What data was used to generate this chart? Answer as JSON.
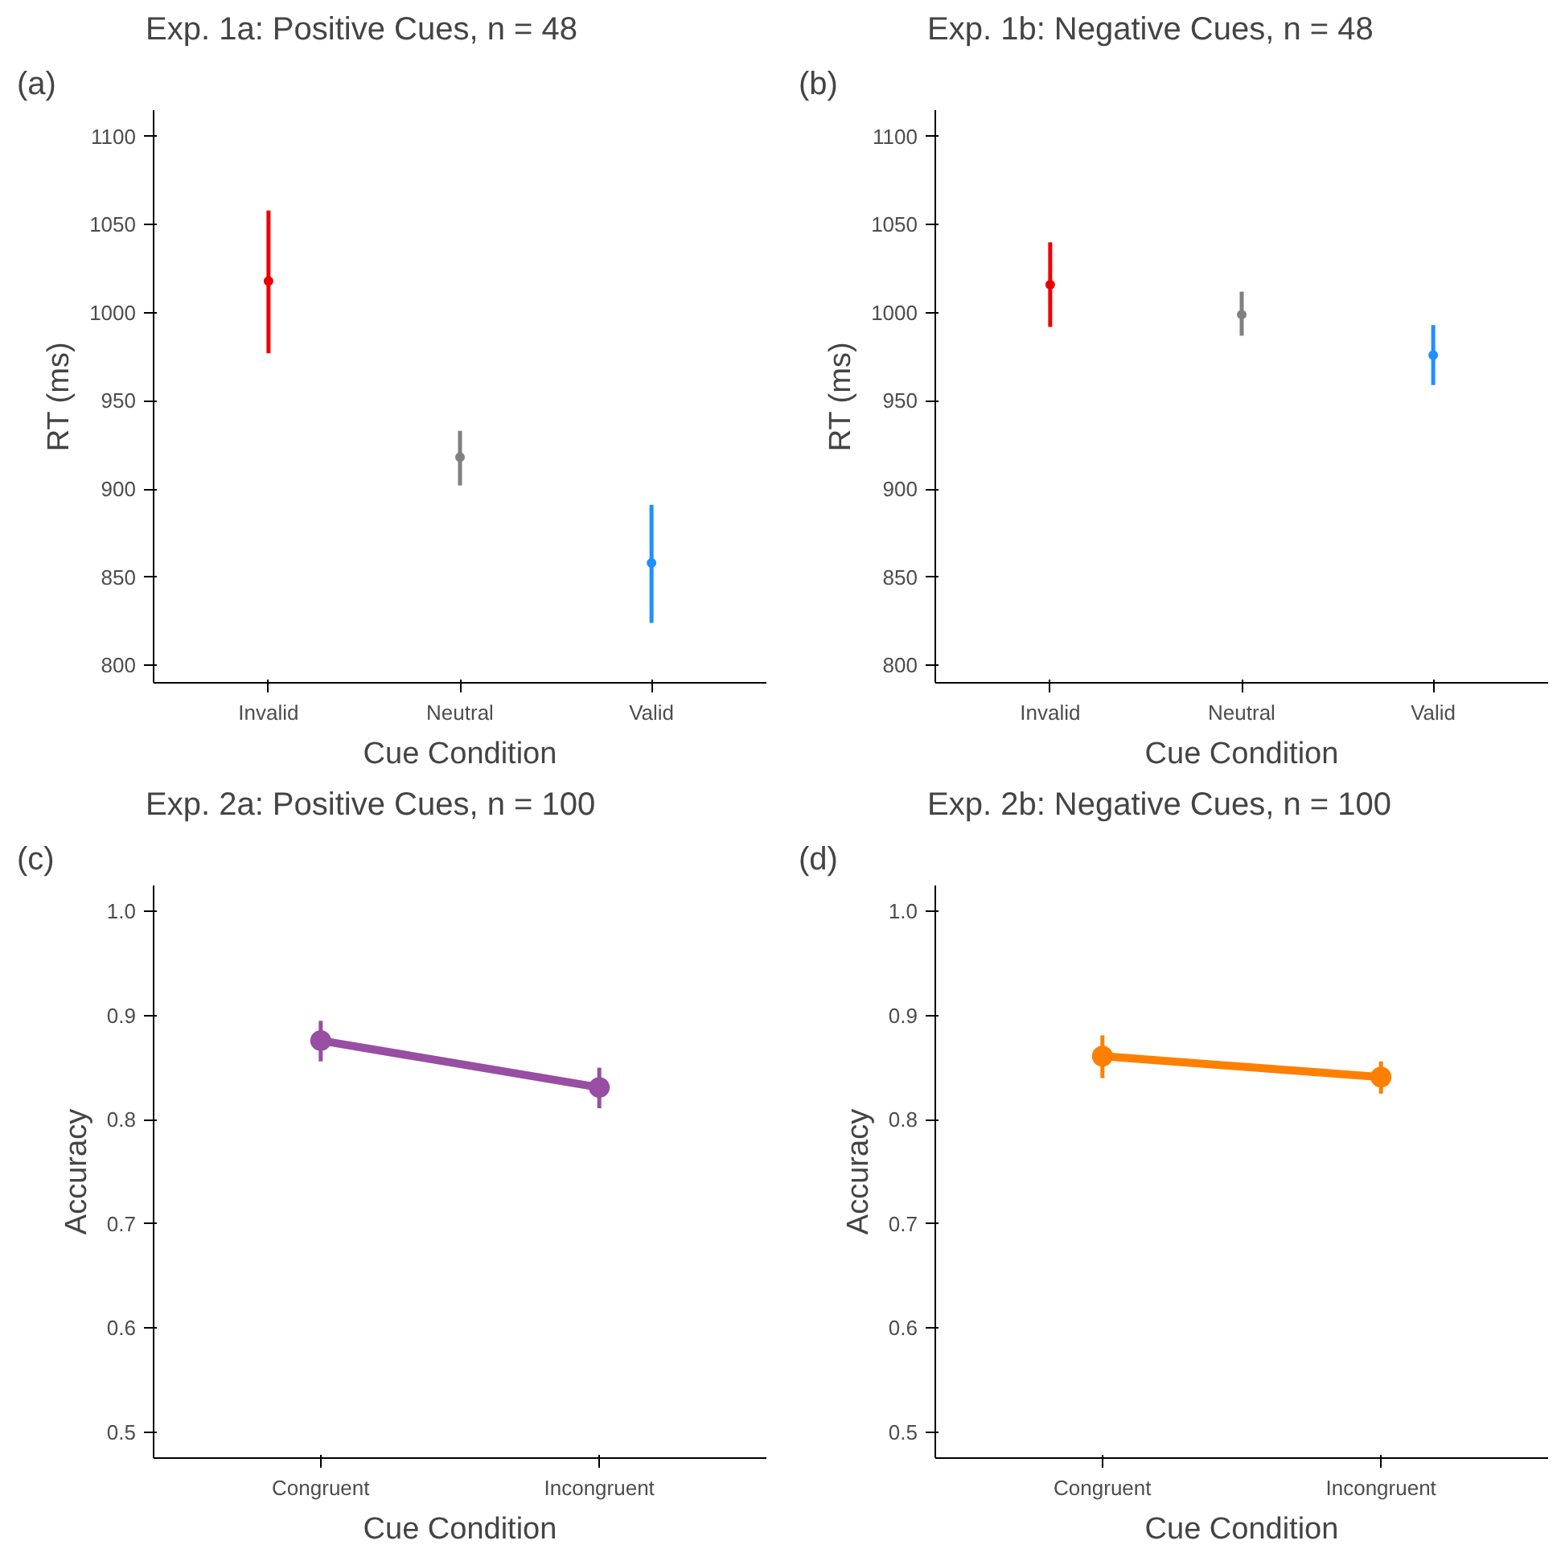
{
  "chart_data": [
    {
      "type": "scatter",
      "title": "Exp. 1a: Positive Cues, n = 48",
      "xlabel": "Cue Condition",
      "ylabel": "RT (ms)",
      "annotations": [
        "(a)"
      ],
      "categories": [
        "Invalid",
        "Neutral",
        "Valid"
      ],
      "values": [
        1018,
        918,
        858
      ],
      "colors": [
        "#ee0000",
        "#808080",
        "#1e90ff"
      ],
      "errors": [
        [
          977,
          1058
        ],
        [
          902,
          933
        ],
        [
          824,
          891
        ]
      ],
      "ylim": [
        790,
        1115
      ],
      "yticks": [
        800,
        850,
        900,
        950,
        1000,
        1050,
        1100
      ],
      "marker": "circle",
      "grid": false
    },
    {
      "type": "scatter",
      "title": "Exp. 1b: Negative Cues, n = 48",
      "xlabel": "Cue Condition",
      "ylabel": "RT (ms)",
      "annotations": [
        "(b)"
      ],
      "categories": [
        "Invalid",
        "Neutral",
        "Valid"
      ],
      "values": [
        1016,
        999,
        976
      ],
      "colors": [
        "#ee0000",
        "#808080",
        "#1e90ff"
      ],
      "errors": [
        [
          992,
          1040
        ],
        [
          987,
          1012
        ],
        [
          959,
          993
        ]
      ],
      "ylim": [
        790,
        1115
      ],
      "yticks": [
        800,
        850,
        900,
        950,
        1000,
        1050,
        1100
      ],
      "marker": "circle",
      "grid": false
    },
    {
      "type": "line",
      "title": "Exp. 2a: Positive Cues, n = 100",
      "xlabel": "Cue Condition",
      "ylabel": "Accuracy",
      "annotations": [
        "(c)"
      ],
      "categories": [
        "Congruent",
        "Incongruent"
      ],
      "series": [
        {
          "color": "#984ea3",
          "values": [
            0.876,
            0.831
          ],
          "errors": [
            [
              0.856,
              0.895
            ],
            [
              0.811,
              0.85
            ]
          ]
        }
      ],
      "ylim": [
        0.475,
        1.025
      ],
      "yticks": [
        0.5,
        0.6,
        0.7,
        0.8,
        0.9,
        {
          "value": 1,
          "label": "1.0"
        }
      ],
      "marker": "circle",
      "line_style": "solid",
      "grid": false
    },
    {
      "type": "line",
      "title": "Exp. 2b: Negative Cues, n = 100",
      "xlabel": "Cue Condition",
      "ylabel": "Accuracy",
      "annotations": [
        "(d)"
      ],
      "categories": [
        "Congruent",
        "Incongruent"
      ],
      "series": [
        {
          "color": "#ff7f00",
          "values": [
            0.861,
            0.841
          ],
          "errors": [
            [
              0.84,
              0.881
            ],
            [
              0.825,
              0.856
            ]
          ]
        }
      ],
      "ylim": [
        0.475,
        1.025
      ],
      "yticks": [
        0.5,
        0.6,
        0.7,
        0.8,
        0.9,
        {
          "value": 1,
          "label": "1.0"
        }
      ],
      "marker": "circle",
      "line_style": "solid",
      "grid": false
    }
  ]
}
